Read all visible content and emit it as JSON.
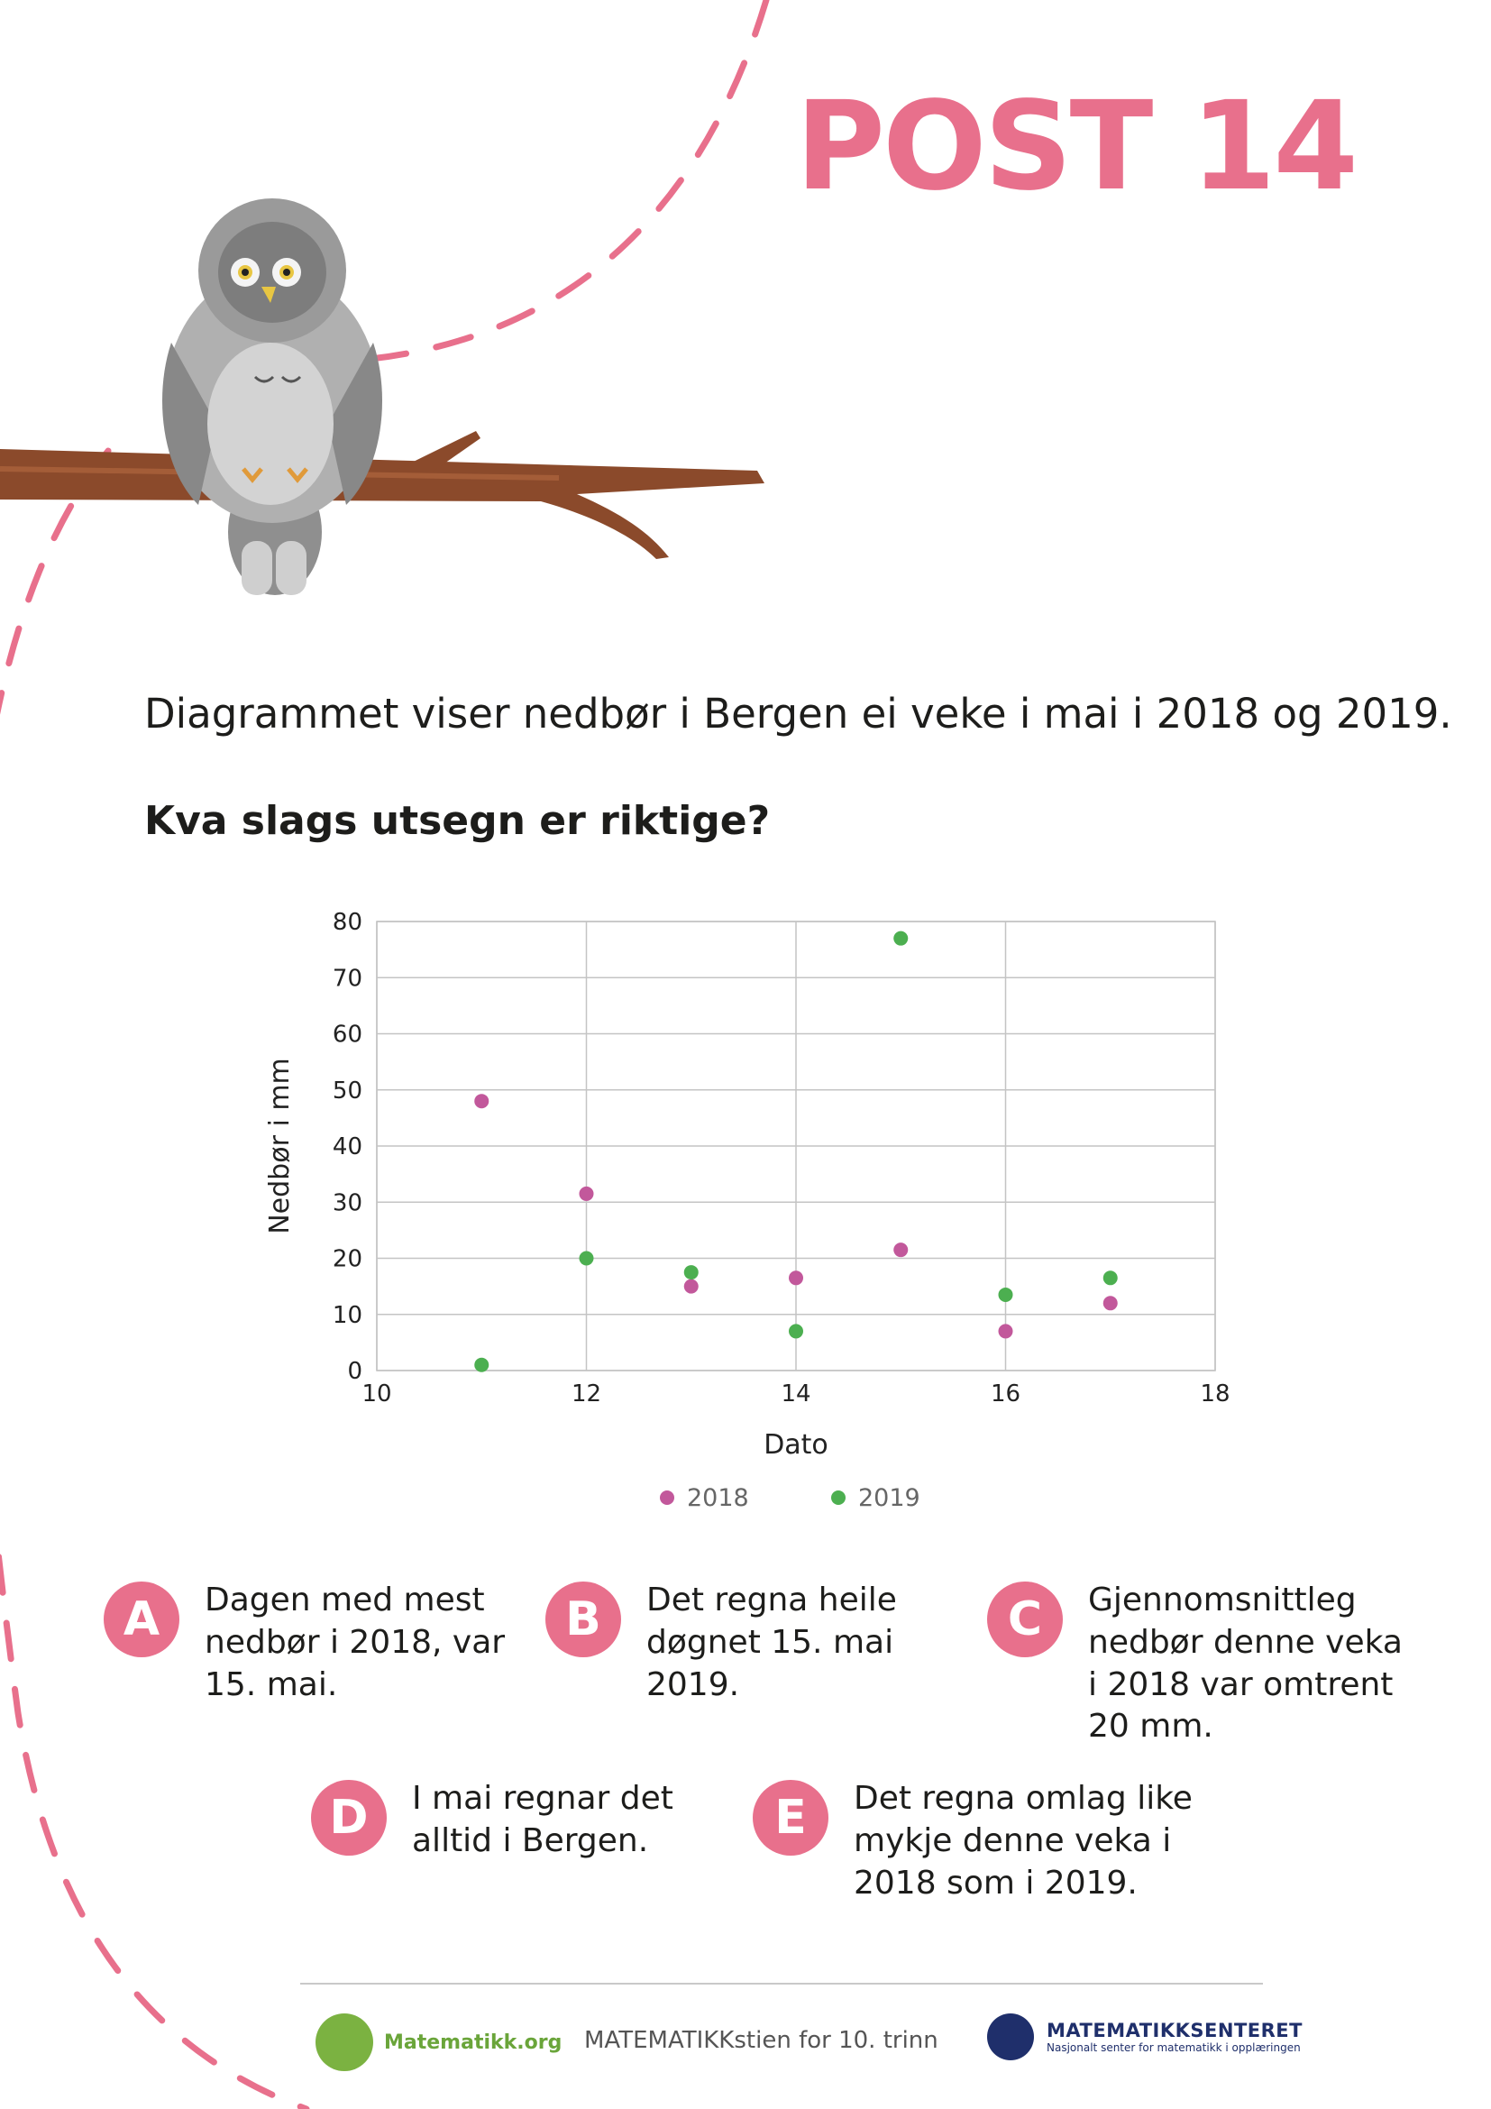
{
  "header": {
    "post_title": "POST 14"
  },
  "intro_text": "Diagrammet viser nedbør i Bergen ei veke i mai i 2018 og 2019.",
  "question": "Kva slags utsegn er riktige?",
  "chart_data": {
    "type": "scatter",
    "title": "",
    "xlabel": "Dato",
    "ylabel": "Nedbør i mm",
    "xlim": [
      10,
      18
    ],
    "ylim": [
      0,
      80
    ],
    "xticks": [
      10,
      12,
      14,
      16,
      18
    ],
    "yticks": [
      0,
      10,
      20,
      30,
      40,
      50,
      60,
      70,
      80
    ],
    "grid": true,
    "legend_position": "bottom",
    "series": [
      {
        "name": "2018",
        "color": "#c2589b",
        "points": [
          [
            11,
            48
          ],
          [
            12,
            31.5
          ],
          [
            13,
            15
          ],
          [
            14,
            16.5
          ],
          [
            15,
            21.5
          ],
          [
            16,
            7
          ],
          [
            17,
            12
          ]
        ]
      },
      {
        "name": "2019",
        "color": "#4caf50",
        "points": [
          [
            11,
            1
          ],
          [
            12,
            20
          ],
          [
            13,
            17.5
          ],
          [
            14,
            7
          ],
          [
            15,
            77
          ],
          [
            16,
            13.5
          ],
          [
            17,
            16.5
          ]
        ]
      }
    ]
  },
  "options": [
    {
      "letter": "A",
      "text": "Dagen med mest\nnedbør i 2018, var\n15. mai."
    },
    {
      "letter": "B",
      "text": "Det regna heile\ndøgnet 15. mai\n2019."
    },
    {
      "letter": "C",
      "text": "Gjennomsnittleg\nnedbør denne veka\ni 2018 var omtrent\n20 mm."
    },
    {
      "letter": "D",
      "text": "I mai regnar det\nalltid i Bergen."
    },
    {
      "letter": "E",
      "text": "Det regna omlag like\nmykje denne veka i\n2018 som i 2019."
    }
  ],
  "footer": {
    "left_logo": "Matematikk.org",
    "center": "MATEMATIKKstien for 10. trinn",
    "right_logo_title": "MATEMATIKKSENTERET",
    "right_logo_sub": "Nasjonalt senter for matematikk i opplæringen"
  },
  "colors": {
    "accent": "#e8708c",
    "branch": "#8b4a2b",
    "owl_gray": "#9b9b9b"
  }
}
